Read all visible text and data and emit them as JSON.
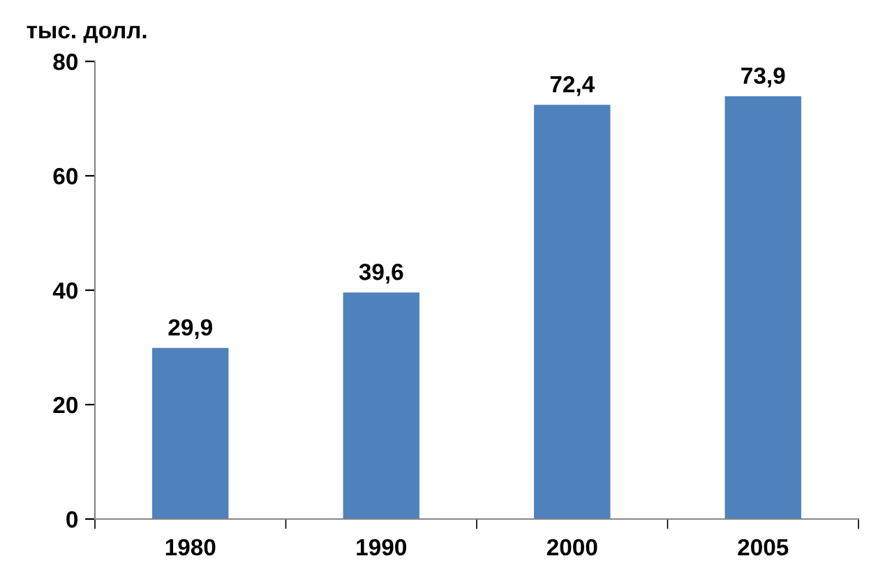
{
  "chart_data": {
    "type": "bar",
    "ylabel": "тыс. долл.",
    "categories": [
      "1980",
      "1990",
      "2000",
      "2005"
    ],
    "values": [
      29.9,
      39.6,
      72.4,
      73.9
    ],
    "value_labels": [
      "29,9",
      "39,6",
      "72,4",
      "73,9"
    ],
    "color": "#4f81bd",
    "ylim": [
      0,
      80
    ],
    "yticks": [
      0,
      20,
      40,
      60,
      80
    ],
    "grid": false
  }
}
